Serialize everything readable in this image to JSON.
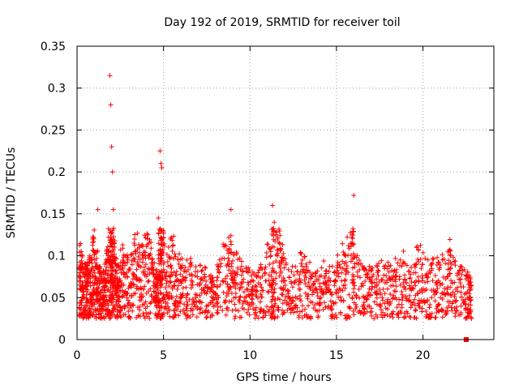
{
  "chart_data": {
    "type": "scatter",
    "title": "Day 192 of 2019, SRMTID for receiver toil",
    "xlabel": "GPS time / hours",
    "ylabel": "SRMTID / TECUs",
    "xlim": [
      0,
      24.1
    ],
    "ylim": [
      0,
      0.35
    ],
    "x_ticks": [
      0,
      5,
      10,
      15,
      20
    ],
    "x_tick_labels": [
      "0",
      "5",
      "10",
      "15",
      "20"
    ],
    "y_ticks": [
      0,
      0.05,
      0.1,
      0.15,
      0.2,
      0.25,
      0.3,
      0.35
    ],
    "y_tick_labels": [
      "0",
      "0.05",
      "0.1",
      "0.15",
      "0.2",
      "0.25",
      "0.3",
      "0.35"
    ],
    "grid": true,
    "marker": "+",
    "color": "#ff0000",
    "series": [
      {
        "name": "SRMTID",
        "points": [
          [
            0.1,
            0.085
          ],
          [
            0.2,
            0.07
          ],
          [
            0.3,
            0.06
          ],
          [
            0.4,
            0.05
          ],
          [
            0.5,
            0.065
          ],
          [
            0.6,
            0.045
          ],
          [
            0.7,
            0.075
          ],
          [
            0.8,
            0.055
          ],
          [
            0.9,
            0.12
          ],
          [
            1.0,
            0.095
          ],
          [
            1.1,
            0.06
          ],
          [
            1.2,
            0.155
          ],
          [
            1.3,
            0.04
          ],
          [
            1.4,
            0.08
          ],
          [
            1.5,
            0.035
          ],
          [
            1.6,
            0.05
          ],
          [
            1.7,
            0.07
          ],
          [
            1.8,
            0.1
          ],
          [
            1.9,
            0.315
          ],
          [
            1.95,
            0.28
          ],
          [
            2.0,
            0.23
          ],
          [
            2.05,
            0.2
          ],
          [
            2.1,
            0.155
          ],
          [
            2.2,
            0.09
          ],
          [
            2.3,
            0.06
          ],
          [
            2.4,
            0.045
          ],
          [
            2.5,
            0.07
          ],
          [
            2.7,
            0.08
          ],
          [
            2.9,
            0.055
          ],
          [
            3.1,
            0.065
          ],
          [
            3.3,
            0.115
          ],
          [
            3.5,
            0.09
          ],
          [
            3.7,
            0.07
          ],
          [
            3.9,
            0.1
          ],
          [
            4.1,
            0.125
          ],
          [
            4.3,
            0.08
          ],
          [
            4.5,
            0.05
          ],
          [
            4.6,
            0.04
          ],
          [
            4.7,
            0.145
          ],
          [
            4.8,
            0.225
          ],
          [
            4.85,
            0.21
          ],
          [
            4.9,
            0.205
          ],
          [
            5.0,
            0.09
          ],
          [
            5.2,
            0.07
          ],
          [
            5.4,
            0.12
          ],
          [
            5.6,
            0.08
          ],
          [
            5.8,
            0.06
          ],
          [
            6.0,
            0.07
          ],
          [
            6.3,
            0.05
          ],
          [
            6.6,
            0.065
          ],
          [
            6.9,
            0.045
          ],
          [
            7.2,
            0.06
          ],
          [
            7.5,
            0.04
          ],
          [
            7.8,
            0.03
          ],
          [
            8.1,
            0.05
          ],
          [
            8.4,
            0.07
          ],
          [
            8.7,
            0.09
          ],
          [
            8.9,
            0.155
          ],
          [
            9.1,
            0.08
          ],
          [
            9.4,
            0.06
          ],
          [
            9.7,
            0.05
          ],
          [
            10.0,
            0.04
          ],
          [
            10.3,
            0.035
          ],
          [
            10.6,
            0.045
          ],
          [
            10.9,
            0.07
          ],
          [
            11.2,
            0.1
          ],
          [
            11.3,
            0.16
          ],
          [
            11.4,
            0.14
          ],
          [
            11.6,
            0.12
          ],
          [
            11.8,
            0.09
          ],
          [
            12.0,
            0.07
          ],
          [
            12.3,
            0.05
          ],
          [
            12.6,
            0.04
          ],
          [
            12.9,
            0.06
          ],
          [
            13.2,
            0.08
          ],
          [
            13.5,
            0.045
          ],
          [
            13.8,
            0.035
          ],
          [
            14.1,
            0.05
          ],
          [
            14.4,
            0.065
          ],
          [
            14.7,
            0.04
          ],
          [
            15.0,
            0.055
          ],
          [
            15.3,
            0.07
          ],
          [
            15.6,
            0.085
          ],
          [
            15.9,
            0.125
          ],
          [
            16.0,
            0.172
          ],
          [
            16.3,
            0.06
          ],
          [
            16.6,
            0.05
          ],
          [
            16.9,
            0.04
          ],
          [
            17.2,
            0.045
          ],
          [
            17.5,
            0.06
          ],
          [
            17.8,
            0.055
          ],
          [
            18.1,
            0.045
          ],
          [
            18.4,
            0.05
          ],
          [
            18.7,
            0.065
          ],
          [
            19.0,
            0.06
          ],
          [
            19.3,
            0.045
          ],
          [
            19.6,
            0.07
          ],
          [
            19.9,
            0.085
          ],
          [
            20.2,
            0.06
          ],
          [
            20.5,
            0.05
          ],
          [
            20.8,
            0.065
          ],
          [
            21.1,
            0.055
          ],
          [
            21.4,
            0.075
          ],
          [
            21.6,
            0.1
          ],
          [
            21.9,
            0.06
          ],
          [
            22.2,
            0.04
          ],
          [
            22.5,
            0.055
          ],
          [
            22.7,
            0.035
          ],
          [
            22.8,
            0.025
          ]
        ]
      }
    ],
    "marker_end": {
      "x": 22.5,
      "y": 0
    }
  }
}
